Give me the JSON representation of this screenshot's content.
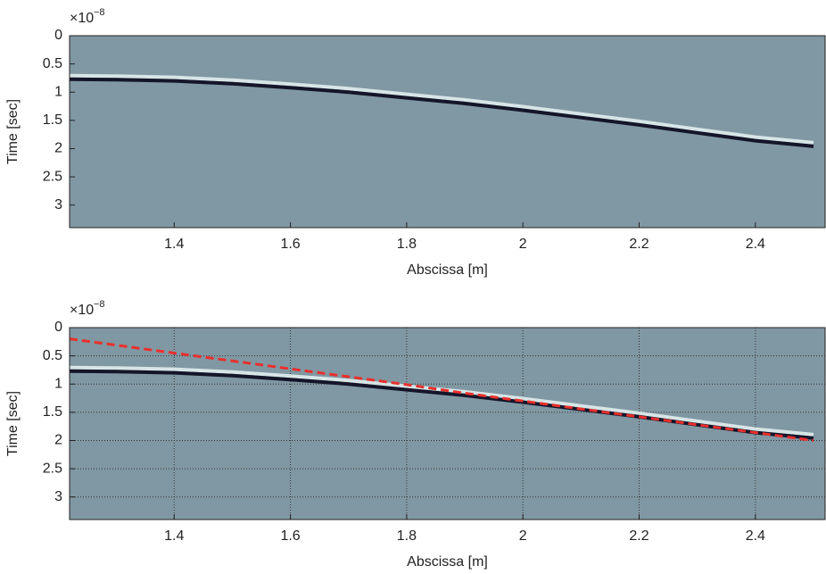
{
  "chart_data": [
    {
      "type": "line",
      "xlabel": "Abscissa [m]",
      "ylabel": "Time [sec]",
      "y_multiplier": {
        "base": "×10",
        "power": "−8"
      },
      "x": [
        1.22,
        1.3,
        1.4,
        1.5,
        1.6,
        1.7,
        1.8,
        1.9,
        2.0,
        2.1,
        2.2,
        2.3,
        2.4,
        2.5
      ],
      "series": [
        {
          "color": "#15152a",
          "values": [
            0.77,
            0.78,
            0.8,
            0.85,
            0.92,
            1.0,
            1.1,
            1.2,
            1.32,
            1.45,
            1.58,
            1.72,
            1.86,
            1.96
          ]
        }
      ],
      "xlim": [
        1.22,
        2.52
      ],
      "xticks": [
        1.4,
        1.6,
        1.8,
        2,
        2.2,
        2.4
      ],
      "ylim": [
        0,
        3.4
      ],
      "yticks": [
        0,
        0.5,
        1,
        1.5,
        2,
        2.5,
        3
      ],
      "y_reversed": true,
      "grid": false,
      "background": "#8098a3"
    },
    {
      "type": "line",
      "xlabel": "Abscissa [m]",
      "ylabel": "Time [sec]",
      "y_multiplier": {
        "base": "×10",
        "power": "−8"
      },
      "x": [
        1.22,
        1.3,
        1.4,
        1.5,
        1.6,
        1.7,
        1.8,
        1.9,
        2.0,
        2.1,
        2.2,
        2.3,
        2.4,
        2.5
      ],
      "series": [
        {
          "color": "#15152a",
          "values": [
            0.77,
            0.78,
            0.8,
            0.85,
            0.92,
            1.0,
            1.1,
            1.2,
            1.32,
            1.45,
            1.58,
            1.72,
            1.86,
            1.96
          ]
        },
        {
          "color": "#e8302c",
          "dashed": true,
          "values": [
            0.2,
            0.31,
            0.45,
            0.59,
            0.73,
            0.87,
            1.01,
            1.16,
            1.3,
            1.44,
            1.58,
            1.72,
            1.86,
            2.0
          ]
        }
      ],
      "xlim": [
        1.22,
        2.52
      ],
      "xticks": [
        1.4,
        1.6,
        1.8,
        2,
        2.2,
        2.4
      ],
      "ylim": [
        0,
        3.4
      ],
      "yticks": [
        0,
        0.5,
        1,
        1.5,
        2,
        2.5,
        3
      ],
      "y_reversed": true,
      "grid": true,
      "background": "#8098a3"
    }
  ]
}
